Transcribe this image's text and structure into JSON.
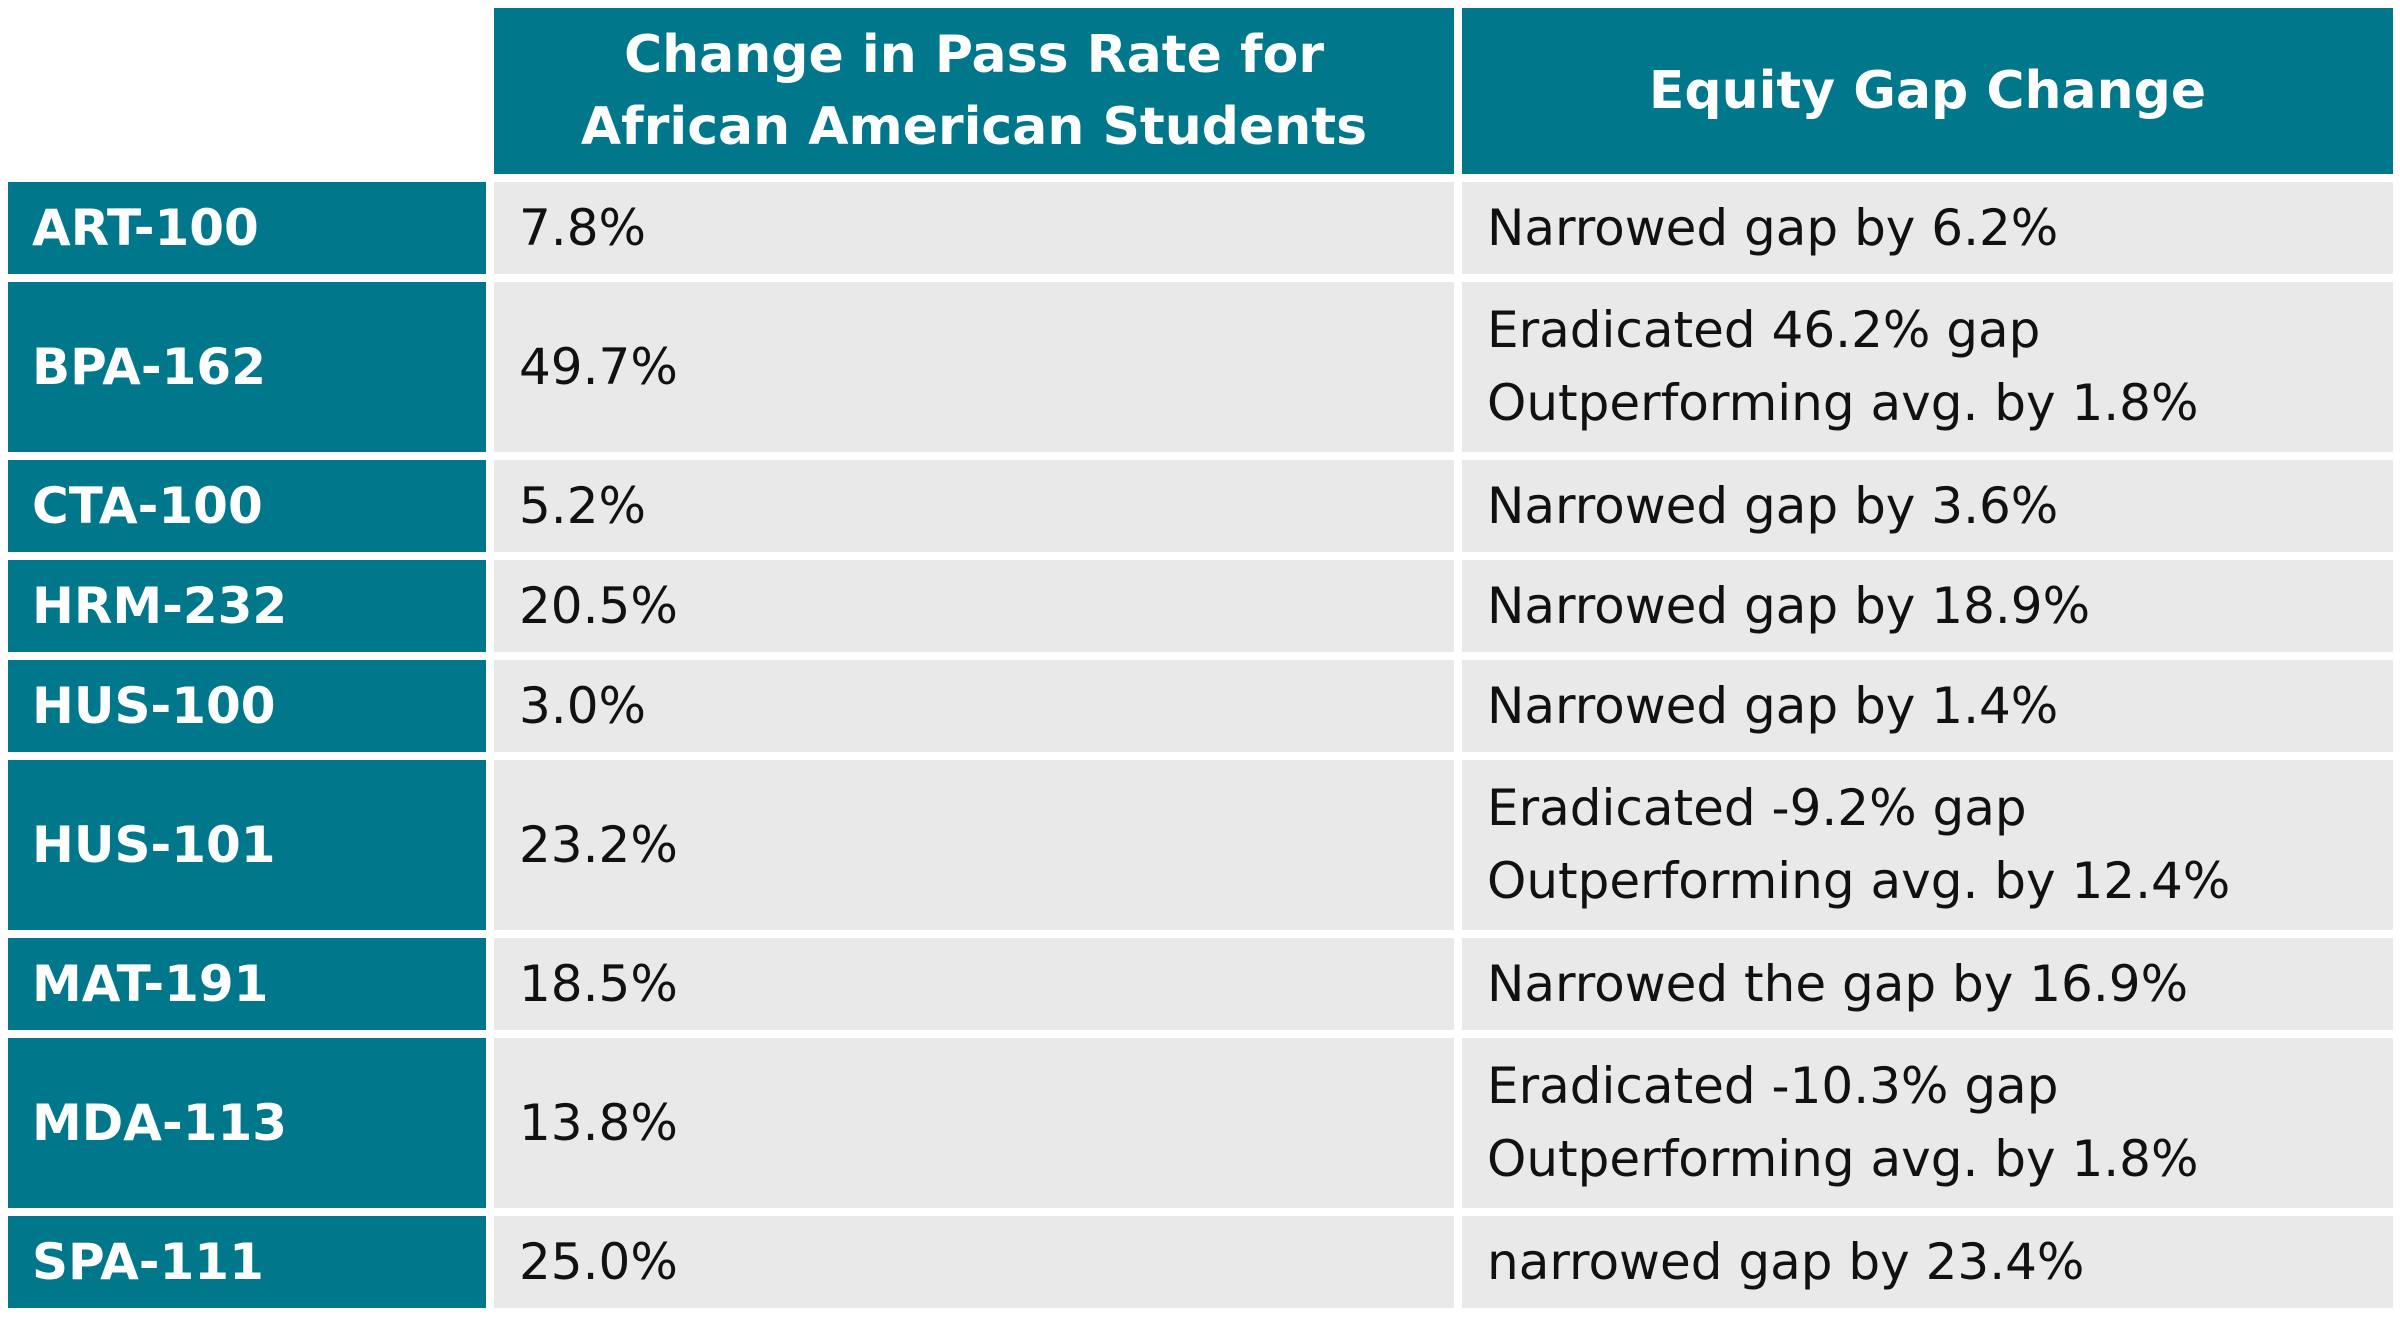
{
  "table": {
    "headers": {
      "pass_rate": "Change in Pass Rate for African American Students",
      "equity_gap": "Equity Gap Change"
    },
    "rows": [
      {
        "course": "ART-100",
        "pass_rate_change": "7.8%",
        "equity_gap_lines": [
          "Narrowed gap by 6.2%"
        ]
      },
      {
        "course": "BPA-162",
        "pass_rate_change": "49.7%",
        "equity_gap_lines": [
          "Eradicated 46.2% gap",
          "Outperforming avg. by 1.8%"
        ]
      },
      {
        "course": "CTA-100",
        "pass_rate_change": "5.2%",
        "equity_gap_lines": [
          "Narrowed gap by 3.6%"
        ]
      },
      {
        "course": "HRM-232",
        "pass_rate_change": "20.5%",
        "equity_gap_lines": [
          "Narrowed gap by 18.9%"
        ]
      },
      {
        "course": "HUS-100",
        "pass_rate_change": "3.0%",
        "equity_gap_lines": [
          "Narrowed gap by 1.4%"
        ]
      },
      {
        "course": "HUS-101",
        "pass_rate_change": "23.2%",
        "equity_gap_lines": [
          "Eradicated -9.2% gap",
          "Outperforming avg. by 12.4%"
        ]
      },
      {
        "course": "MAT-191",
        "pass_rate_change": "18.5%",
        "equity_gap_lines": [
          "Narrowed the gap by 16.9%"
        ]
      },
      {
        "course": "MDA-113",
        "pass_rate_change": "13.8%",
        "equity_gap_lines": [
          "Eradicated -10.3% gap",
          "Outperforming avg. by 1.8%"
        ]
      },
      {
        "course": "SPA-111",
        "pass_rate_change": "25.0%",
        "equity_gap_lines": [
          "narrowed gap by 23.4%"
        ]
      }
    ]
  },
  "colors": {
    "header_bg": "#00778a",
    "cell_bg": "#e9e9e9"
  }
}
